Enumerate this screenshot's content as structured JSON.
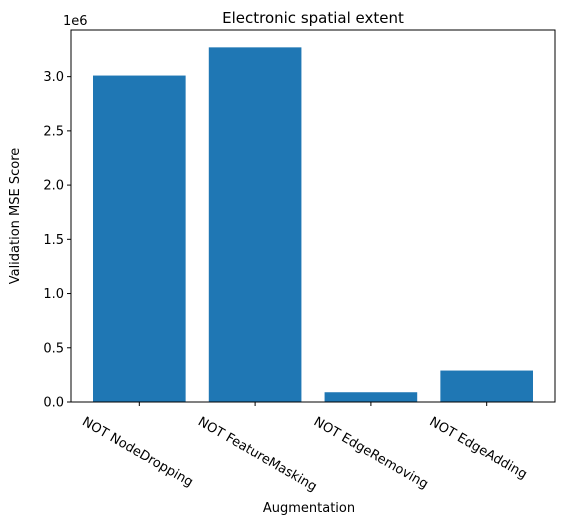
{
  "chart_data": {
    "type": "bar",
    "title": "Electronic spatial extent",
    "xlabel": "Augmentation",
    "ylabel": "Validation MSE Score",
    "y_offset_label": "1e6",
    "categories": [
      "NOT NodeDropping",
      "NOT FeatureMasking",
      "NOT EdgeRemoving",
      "NOT EdgeAdding"
    ],
    "values": [
      3.01,
      3.27,
      0.09,
      0.29
    ],
    "value_scale": 1000000,
    "ylim": [
      0,
      3.43
    ],
    "yticks": [
      0.0,
      0.5,
      1.0,
      1.5,
      2.0,
      2.5,
      3.0
    ],
    "ytick_labels": [
      "0.0",
      "0.5",
      "1.0",
      "1.5",
      "2.0",
      "2.5",
      "3.0"
    ],
    "bar_color": "#1f77b4",
    "grid": false,
    "legend": "none"
  }
}
